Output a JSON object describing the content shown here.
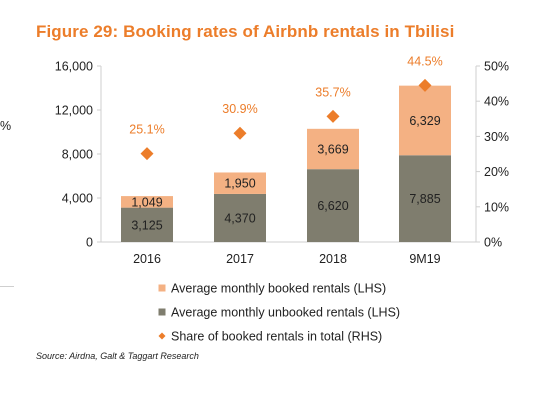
{
  "title": "Figure 29: Booking rates of Airbnb rentals in Tbilisi",
  "source": "Source: Airdna, Galt & Taggart Research",
  "edge_fragment": "%",
  "colors": {
    "booked": "#f4b183",
    "unbooked": "#7f7d6e",
    "share": "#ec7d2a",
    "title": "#ec7d2a"
  },
  "chart_data": {
    "type": "bar",
    "stacked": true,
    "categories": [
      "2016",
      "2017",
      "2018",
      "9M19"
    ],
    "series": [
      {
        "name": "Average monthly unbooked rentals (LHS)",
        "values": [
          3125,
          4370,
          6620,
          7885
        ],
        "axis": "left"
      },
      {
        "name": "Average monthly booked rentals (LHS)",
        "values": [
          1049,
          1950,
          3669,
          6329
        ],
        "axis": "left"
      },
      {
        "name": "Share of booked rentals in total (RHS)",
        "type": "scatter",
        "marker": "diamond",
        "values": [
          25.1,
          30.9,
          35.7,
          44.5
        ],
        "axis": "right"
      }
    ],
    "y_left": {
      "range": [
        0,
        16000
      ],
      "ticks": [
        "0",
        "4,000",
        "8,000",
        "12,000",
        "16,000"
      ]
    },
    "y_right": {
      "range": [
        0,
        50
      ],
      "ticks": [
        "0%",
        "10%",
        "20%",
        "30%",
        "40%",
        "50%"
      ]
    },
    "value_labels": {
      "unbooked": [
        "3,125",
        "4,370",
        "6,620",
        "7,885"
      ],
      "booked": [
        "1,049",
        "1,950",
        "3,669",
        "6,329"
      ],
      "share": [
        "25.1%",
        "30.9%",
        "35.7%",
        "44.5%"
      ]
    },
    "legend": {
      "position": "bottom",
      "items": [
        {
          "label": "Average monthly booked rentals (LHS)",
          "marker": "square",
          "color": "#f4b183"
        },
        {
          "label": "Average monthly unbooked rentals (LHS)",
          "marker": "square",
          "color": "#7f7d6e"
        },
        {
          "label": "Share of booked rentals in total (RHS)",
          "marker": "diamond",
          "color": "#ec7d2a"
        }
      ]
    },
    "grid": false
  }
}
